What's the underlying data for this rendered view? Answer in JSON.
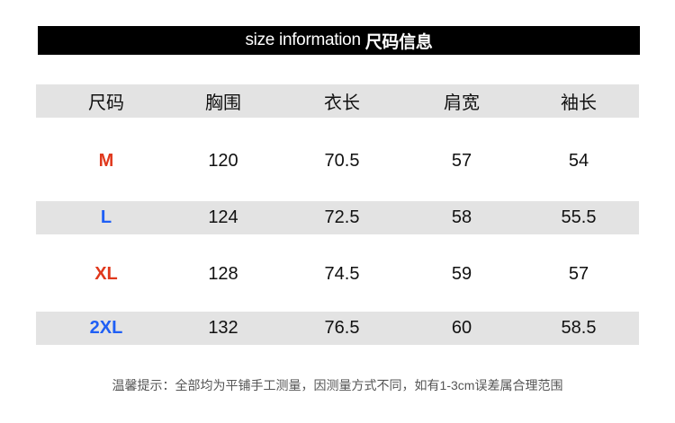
{
  "title": {
    "en": "size information",
    "cn": "尺码信息"
  },
  "headers": [
    "尺码",
    "胸围",
    "衣长",
    "肩宽",
    "袖长"
  ],
  "rows": [
    {
      "size": "M",
      "color": "#e0381c",
      "values": [
        "120",
        "70.5",
        "57",
        "54"
      ]
    },
    {
      "size": "L",
      "color": "#1f5ff5",
      "values": [
        "124",
        "72.5",
        "58",
        "55.5"
      ]
    },
    {
      "size": "XL",
      "color": "#e0381c",
      "values": [
        "128",
        "74.5",
        "59",
        "57"
      ]
    },
    {
      "size": "2XL",
      "color": "#1f5ff5",
      "values": [
        "132",
        "76.5",
        "60",
        "58.5"
      ]
    }
  ],
  "note": "温馨提示：全部均为平铺手工测量，因测量方式不同，如有1-3cm误差属合理范围"
}
